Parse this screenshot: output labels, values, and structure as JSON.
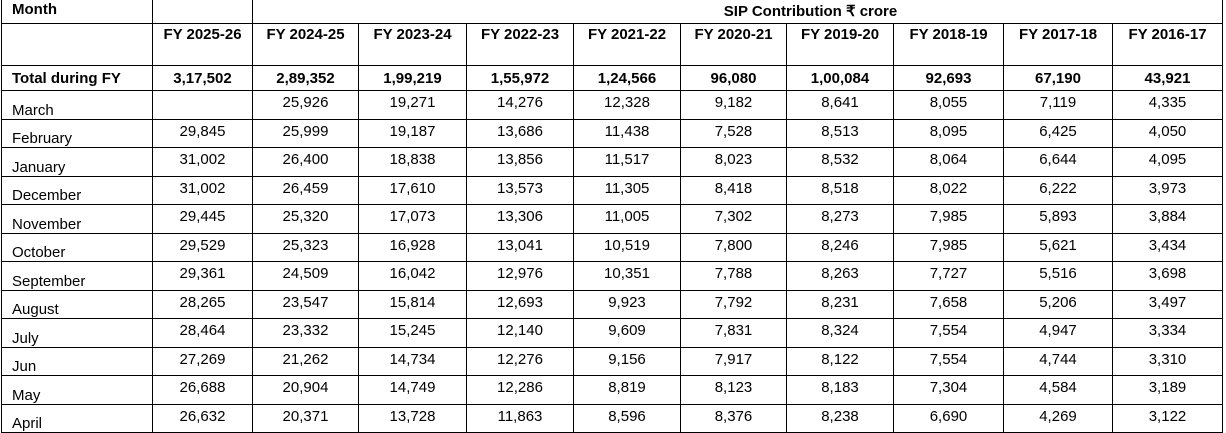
{
  "table": {
    "row_label_header": "Month",
    "group_header": "SIP Contribution ₹ crore",
    "columns": [
      "FY 2025-26",
      "FY 2024-25",
      "FY 2023-24",
      "FY 2022-23",
      "FY 2021-22",
      "FY 2020-21",
      "FY 2019-20",
      "FY 2018-19",
      "FY 2017-18",
      "FY 2016-17"
    ],
    "total": {
      "label": "Total during FY",
      "values": [
        "3,17,502",
        "2,89,352",
        "1,99,219",
        "1,55,972",
        "1,24,566",
        "96,080",
        "1,00,084",
        "92,693",
        "67,190",
        "43,921"
      ]
    },
    "rows": [
      {
        "month": "March",
        "values": [
          "",
          "25,926",
          "19,271",
          "14,276",
          "12,328",
          "9,182",
          "8,641",
          "8,055",
          "7,119",
          "4,335"
        ]
      },
      {
        "month": "February",
        "values": [
          "29,845",
          "25,999",
          "19,187",
          "13,686",
          "11,438",
          "7,528",
          "8,513",
          "8,095",
          "6,425",
          "4,050"
        ]
      },
      {
        "month": "January",
        "values": [
          "31,002",
          "26,400",
          "18,838",
          "13,856",
          "11,517",
          "8,023",
          "8,532",
          "8,064",
          "6,644",
          "4,095"
        ]
      },
      {
        "month": "December",
        "values": [
          "31,002",
          "26,459",
          "17,610",
          "13,573",
          "11,305",
          "8,418",
          "8,518",
          "8,022",
          "6,222",
          "3,973"
        ]
      },
      {
        "month": "November",
        "values": [
          "29,445",
          "25,320",
          "17,073",
          "13,306",
          "11,005",
          "7,302",
          "8,273",
          "7,985",
          "5,893",
          "3,884"
        ]
      },
      {
        "month": "October",
        "values": [
          "29,529",
          "25,323",
          "16,928",
          "13,041",
          "10,519",
          "7,800",
          "8,246",
          "7,985",
          "5,621",
          "3,434"
        ]
      },
      {
        "month": "September",
        "values": [
          "29,361",
          "24,509",
          "16,042",
          "12,976",
          "10,351",
          "7,788",
          "8,263",
          "7,727",
          "5,516",
          "3,698"
        ]
      },
      {
        "month": "August",
        "values": [
          "28,265",
          "23,547",
          "15,814",
          "12,693",
          "9,923",
          "7,792",
          "8,231",
          "7,658",
          "5,206",
          "3,497"
        ]
      },
      {
        "month": "July",
        "values": [
          "28,464",
          "23,332",
          "15,245",
          "12,140",
          "9,609",
          "7,831",
          "8,324",
          "7,554",
          "4,947",
          "3,334"
        ]
      },
      {
        "month": "Jun",
        "values": [
          "27,269",
          "21,262",
          "14,734",
          "12,276",
          "9,156",
          "7,917",
          "8,122",
          "7,554",
          "4,744",
          "3,310"
        ]
      },
      {
        "month": "May",
        "values": [
          "26,688",
          "20,904",
          "14,749",
          "12,286",
          "8,819",
          "8,123",
          "8,183",
          "7,304",
          "4,584",
          "3,189"
        ]
      },
      {
        "month": "April",
        "values": [
          "26,632",
          "20,371",
          "13,728",
          "11,863",
          "8,596",
          "8,376",
          "8,238",
          "6,690",
          "4,269",
          "3,122"
        ]
      }
    ]
  }
}
